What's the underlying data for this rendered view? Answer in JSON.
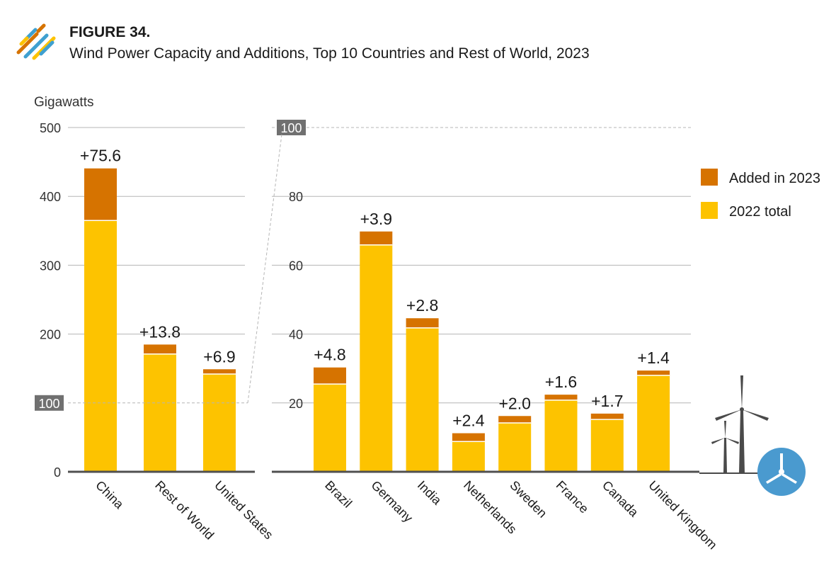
{
  "header": {
    "figure_label": "FIGURE 34.",
    "title": "Wind Power Capacity and Additions, Top 10 Countries and Rest of World,",
    "year": "2023",
    "logo_icon": "stripes-logo-icon"
  },
  "colors": {
    "added": "#D67300",
    "base": "#FDC300",
    "grid": "#B5B5B5",
    "axis": "#505050",
    "tag_bg": "#707070",
    "turbine": "#4A4A4A",
    "badge": "#4A9ACF"
  },
  "chart_data": [
    {
      "type": "bar",
      "stacked": true,
      "ylabel": "Gigawatts",
      "ylim": [
        0,
        500
      ],
      "yticks": [
        "0",
        "100",
        "200",
        "300",
        "400",
        "500"
      ],
      "highlight_tick": "100",
      "categories": [
        "China",
        "Rest of World",
        "United States"
      ],
      "series": [
        {
          "name": "2022 total",
          "values": [
            365,
            171,
            142
          ]
        },
        {
          "name": "Added in 2023",
          "values": [
            75.6,
            13.8,
            6.9
          ]
        }
      ],
      "data_labels": [
        "+75.6",
        "+13.8",
        "+6.9"
      ]
    },
    {
      "type": "bar",
      "stacked": true,
      "ylim": [
        0,
        100
      ],
      "yticks": [
        "20",
        "40",
        "60",
        "80",
        "100"
      ],
      "highlight_tick": "100",
      "categories": [
        "Brazil",
        "Germany",
        "India",
        "Netherlands",
        "Sweden",
        "France",
        "Canada",
        "United Kingdom"
      ],
      "series": [
        {
          "name": "2022 total",
          "values": [
            25.5,
            65.9,
            41.8,
            8.8,
            14.2,
            20.8,
            15.2,
            28.0
          ]
        },
        {
          "name": "Added in 2023",
          "values": [
            4.8,
            3.9,
            2.8,
            2.4,
            2.0,
            1.6,
            1.7,
            1.4
          ]
        }
      ],
      "data_labels": [
        "+4.8",
        "+3.9",
        "+2.8",
        "+2.4",
        "+2.0",
        "+1.6",
        "+1.7",
        "+1.4"
      ]
    }
  ],
  "legend": {
    "placement": "right",
    "items": [
      {
        "label": "Added in 2023",
        "color": "#D67300"
      },
      {
        "label": "2022 total",
        "color": "#FDC300"
      }
    ]
  },
  "decoration": {
    "turbine_icon": "wind-turbine-icon",
    "badge_icon": "turbine-badge-icon"
  }
}
